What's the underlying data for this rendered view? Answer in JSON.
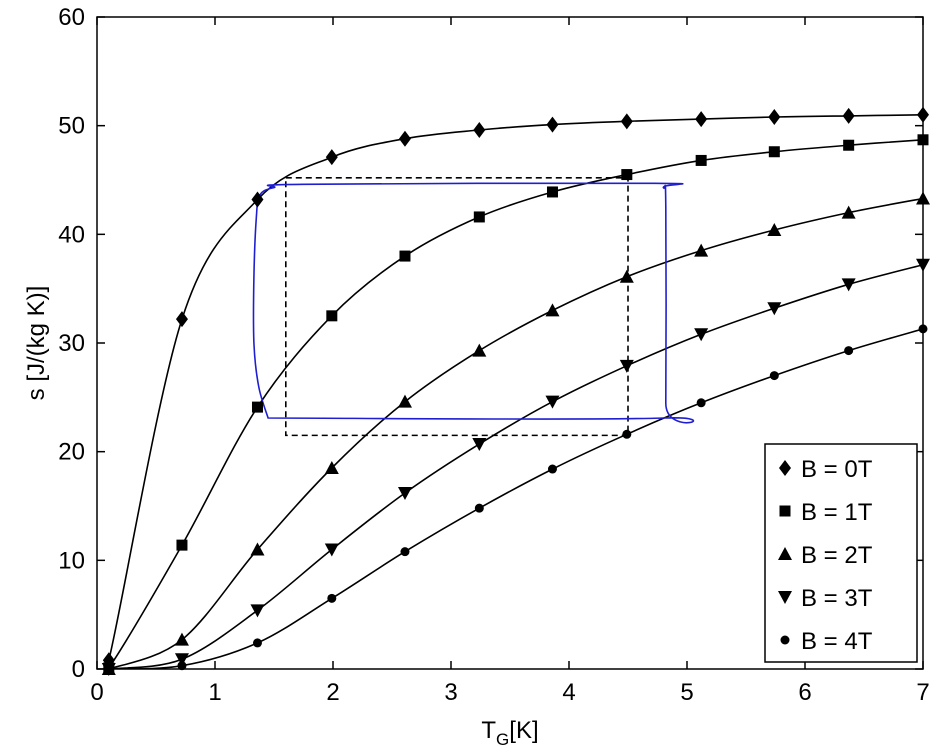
{
  "chart_data": {
    "type": "scatter",
    "title": "",
    "xlabel": "T_G [K]",
    "ylabel": "s [J/(kg K)]",
    "xlabel_main": "T",
    "xlabel_sub": "G",
    "xlabel_tail": "[K]",
    "xlim": [
      0,
      7
    ],
    "ylim": [
      0,
      60
    ],
    "xticks": [
      "0",
      "1",
      "2",
      "3",
      "4",
      "5",
      "6",
      "7"
    ],
    "yticks": [
      "0",
      "10",
      "20",
      "30",
      "40",
      "50",
      "60"
    ],
    "grid": false,
    "legend_position": "bottom-right",
    "series": [
      {
        "name": "B = 0T",
        "marker": "diamond",
        "x": [
          0.1,
          0.72,
          1.36,
          1.99,
          2.61,
          3.24,
          3.86,
          4.49,
          5.12,
          5.74,
          6.37,
          7.0
        ],
        "y": [
          0.8,
          32.2,
          43.2,
          47.1,
          48.8,
          49.6,
          50.1,
          50.4,
          50.6,
          50.8,
          50.9,
          51.0
        ]
      },
      {
        "name": "B = 1T",
        "marker": "square",
        "x": [
          0.1,
          0.72,
          1.36,
          1.99,
          2.61,
          3.24,
          3.86,
          4.49,
          5.12,
          5.74,
          6.37,
          7.0
        ],
        "y": [
          0.1,
          11.4,
          24.1,
          32.5,
          38.0,
          41.6,
          43.9,
          45.5,
          46.8,
          47.6,
          48.2,
          48.7
        ]
      },
      {
        "name": "B = 2T",
        "marker": "triangle-up",
        "x": [
          0.1,
          0.72,
          1.36,
          1.99,
          2.61,
          3.24,
          3.86,
          4.49,
          5.12,
          5.74,
          6.37,
          7.0
        ],
        "y": [
          0.0,
          2.7,
          11.0,
          18.5,
          24.6,
          29.3,
          33.0,
          36.1,
          38.5,
          40.4,
          42.0,
          43.3
        ]
      },
      {
        "name": "B = 3T",
        "marker": "triangle-down",
        "x": [
          0.1,
          0.72,
          1.36,
          1.99,
          2.61,
          3.24,
          3.86,
          4.49,
          5.12,
          5.74,
          6.37,
          7.0
        ],
        "y": [
          0.0,
          0.9,
          5.4,
          11.0,
          16.2,
          20.7,
          24.6,
          27.9,
          30.8,
          33.2,
          35.4,
          37.2
        ]
      },
      {
        "name": "B = 4T",
        "marker": "circle",
        "x": [
          0.1,
          0.72,
          1.36,
          1.99,
          2.61,
          3.24,
          3.86,
          4.49,
          5.12,
          5.74,
          6.37,
          7.0
        ],
        "y": [
          0.0,
          0.3,
          2.4,
          6.5,
          10.8,
          14.8,
          18.4,
          21.6,
          24.5,
          27.0,
          29.3,
          31.3
        ]
      }
    ],
    "overlays": [
      {
        "style": "dashed-rectangle",
        "color": "#000000",
        "x": [
          1.6,
          4.5
        ],
        "y": [
          21.5,
          45.2
        ]
      },
      {
        "style": "closed-loop",
        "color": "#1f1fd0",
        "points": [
          [
            1.45,
            23.1
          ],
          [
            4.8,
            23.1
          ],
          [
            4.82,
            24.5
          ],
          [
            4.82,
            42.5
          ],
          [
            4.8,
            44.3
          ],
          [
            4.72,
            44.7
          ],
          [
            1.75,
            44.6
          ],
          [
            1.5,
            44.3
          ],
          [
            1.38,
            43.6
          ],
          [
            1.35,
            41.5
          ],
          [
            1.33,
            36.0
          ],
          [
            1.33,
            30.0
          ],
          [
            1.37,
            26.0
          ],
          [
            1.45,
            23.1
          ]
        ]
      }
    ],
    "colors": {
      "series": "#000000",
      "loop": "#1f1fd0"
    }
  }
}
